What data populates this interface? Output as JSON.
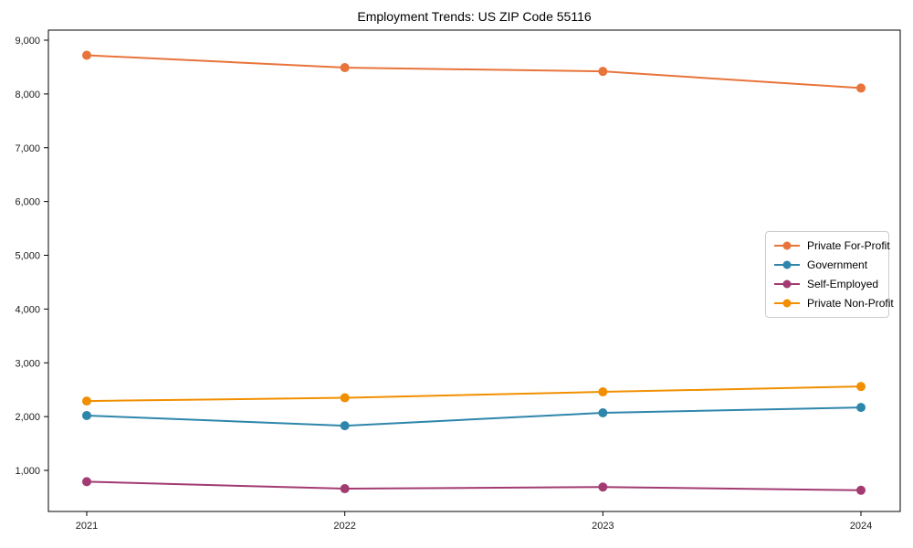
{
  "chart_data": {
    "type": "line",
    "title": "Employment Trends: US ZIP Code 55116",
    "categories": [
      "2021",
      "2022",
      "2023",
      "2024"
    ],
    "series": [
      {
        "name": "Private For-Profit",
        "color": "#e8743b",
        "values": [
          8720,
          8490,
          8420,
          8110
        ]
      },
      {
        "name": "Government",
        "color": "#2e86ab",
        "values": [
          2020,
          1830,
          2070,
          2170
        ]
      },
      {
        "name": "Self-Employed",
        "color": "#a23b72",
        "values": [
          790,
          660,
          690,
          630
        ]
      },
      {
        "name": "Private Non-Profit",
        "color": "#f18f01",
        "values": [
          2290,
          2350,
          2460,
          2560
        ]
      }
    ],
    "xlabel": "",
    "ylabel": "",
    "ylim": [
      236,
      9187
    ],
    "yticks": [
      1000,
      2000,
      3000,
      4000,
      5000,
      6000,
      7000,
      8000,
      9000
    ],
    "ytick_labels": [
      "1,000",
      "2,000",
      "3,000",
      "4,000",
      "5,000",
      "6,000",
      "7,000",
      "8,000",
      "9,000"
    ],
    "grid": false,
    "legend_position": "right",
    "axis_color": "#000000",
    "tick_label_color": "#1a1a1a",
    "marker": "circle",
    "marker_radius": 5,
    "line_width": 2
  }
}
